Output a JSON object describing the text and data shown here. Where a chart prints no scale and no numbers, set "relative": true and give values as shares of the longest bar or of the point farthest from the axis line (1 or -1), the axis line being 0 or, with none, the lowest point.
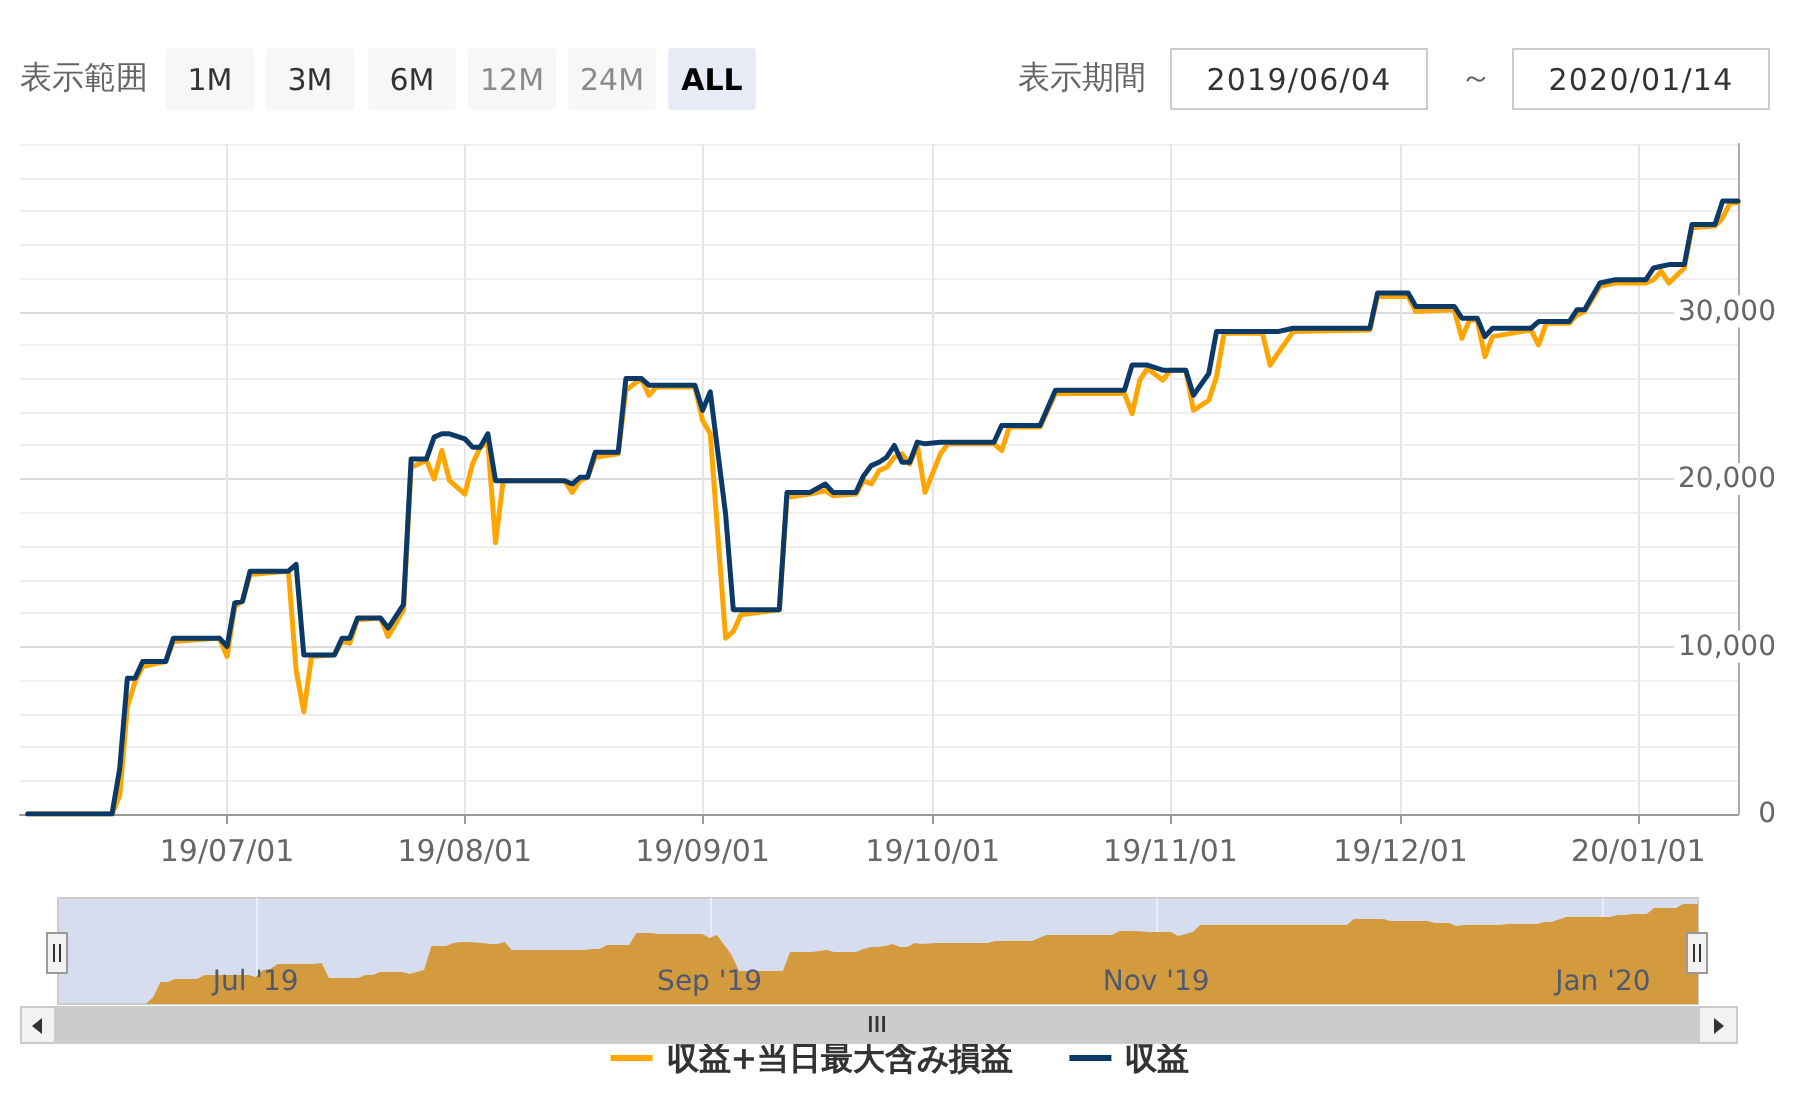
{
  "chart_data": [
    {
      "type": "line",
      "annotations": [
        "表示範囲",
        "1M",
        "3M",
        "6M",
        "12M",
        "24M",
        "ALL",
        "表示期間",
        "2019/06/04",
        "～",
        "2020/01/14"
      ],
      "x": [
        "2019-06-05",
        "2019-06-16",
        "2019-06-17",
        "2019-06-18",
        "2019-06-19",
        "2019-06-20",
        "2019-06-23",
        "2019-06-24",
        "2019-06-30",
        "2019-07-01",
        "2019-07-02",
        "2019-07-03",
        "2019-07-04",
        "2019-07-09",
        "2019-07-10",
        "2019-07-11",
        "2019-07-12",
        "2019-07-15",
        "2019-07-16",
        "2019-07-17",
        "2019-07-18",
        "2019-07-21",
        "2019-07-22",
        "2019-07-24",
        "2019-07-25",
        "2019-07-27",
        "2019-07-28",
        "2019-07-29",
        "2019-07-30",
        "2019-08-01",
        "2019-08-02",
        "2019-08-03",
        "2019-08-04",
        "2019-08-05",
        "2019-08-06",
        "2019-08-14",
        "2019-08-15",
        "2019-08-16",
        "2019-08-17",
        "2019-08-18",
        "2019-08-21",
        "2019-08-22",
        "2019-08-24",
        "2019-08-25",
        "2019-08-26",
        "2019-08-31",
        "2019-09-01",
        "2019-09-02",
        "2019-09-04",
        "2019-09-05",
        "2019-09-06",
        "2019-09-11",
        "2019-09-12",
        "2019-09-15",
        "2019-09-17",
        "2019-09-18",
        "2019-09-21",
        "2019-09-22",
        "2019-09-23",
        "2019-09-24",
        "2019-09-25",
        "2019-09-26",
        "2019-09-27",
        "2019-09-28",
        "2019-09-29",
        "2019-09-30",
        "2019-10-02",
        "2019-10-03",
        "2019-10-09",
        "2019-10-10",
        "2019-10-11",
        "2019-10-15",
        "2019-10-17",
        "2019-10-26",
        "2019-10-27",
        "2019-10-28",
        "2019-10-29",
        "2019-10-31",
        "2019-11-01",
        "2019-11-03",
        "2019-11-04",
        "2019-11-06",
        "2019-11-07",
        "2019-11-08",
        "2019-11-13",
        "2019-11-14",
        "2019-11-15",
        "2019-11-17",
        "2019-11-27",
        "2019-11-28",
        "2019-12-02",
        "2019-12-03",
        "2019-12-08",
        "2019-12-09",
        "2019-12-10",
        "2019-12-11",
        "2019-12-12",
        "2019-12-13",
        "2019-12-18",
        "2019-12-19",
        "2019-12-20",
        "2019-12-23",
        "2019-12-24",
        "2019-12-25",
        "2019-12-27",
        "2019-12-29",
        "2020-01-02",
        "2020-01-03",
        "2020-01-04",
        "2020-01-05",
        "2020-01-07",
        "2020-01-08",
        "2020-01-11",
        "2020-01-12",
        "2020-01-13",
        "2020-01-14"
      ],
      "series": [
        {
          "name": "収益+当日最大含み損益",
          "color": "#ffa500",
          "values": [
            0,
            0,
            1100,
            6400,
            7900,
            8800,
            9100,
            10300,
            10500,
            9400,
            12400,
            12700,
            14300,
            14500,
            8600,
            6100,
            9400,
            9500,
            10300,
            10200,
            11600,
            11700,
            10600,
            12200,
            20700,
            21100,
            20000,
            21700,
            19900,
            19100,
            20900,
            21900,
            22200,
            16200,
            19900,
            19900,
            19200,
            19900,
            20100,
            21300,
            21500,
            25300,
            26000,
            25000,
            25500,
            25500,
            23500,
            22700,
            10500,
            10900,
            11900,
            12200,
            18900,
            19100,
            19300,
            19000,
            19100,
            19900,
            19700,
            20500,
            20700,
            21300,
            21500,
            20900,
            22000,
            19200,
            21500,
            22100,
            22100,
            21700,
            23100,
            23100,
            25100,
            25100,
            23900,
            25900,
            26600,
            25900,
            26500,
            26500,
            24100,
            24700,
            26100,
            28700,
            28700,
            26800,
            27500,
            28800,
            28900,
            30900,
            30900,
            30000,
            30100,
            28400,
            29500,
            29500,
            27300,
            28500,
            28900,
            28000,
            29300,
            29300,
            29800,
            30000,
            31500,
            31700,
            31700,
            31900,
            32400,
            31700,
            32600,
            35000,
            35100,
            35600,
            36500,
            36500
          ]
        },
        {
          "name": "収益",
          "color": "#0b3a68",
          "values": [
            0,
            0,
            2700,
            8100,
            8100,
            9100,
            9100,
            10500,
            10500,
            10000,
            12600,
            12700,
            14500,
            14500,
            14900,
            9500,
            9500,
            9500,
            10500,
            10500,
            11700,
            11700,
            11100,
            12500,
            21200,
            21200,
            22500,
            22700,
            22700,
            22400,
            21900,
            21900,
            22700,
            19900,
            19900,
            19900,
            19700,
            20100,
            20100,
            21600,
            21600,
            26000,
            26000,
            25600,
            25600,
            25600,
            24100,
            25200,
            17900,
            12200,
            12200,
            12200,
            19200,
            19200,
            19700,
            19200,
            19200,
            20200,
            20800,
            21000,
            21300,
            22000,
            21000,
            21000,
            22200,
            22100,
            22200,
            22200,
            22200,
            23200,
            23200,
            23200,
            25300,
            25300,
            26800,
            26800,
            26800,
            26500,
            26500,
            26500,
            25000,
            26300,
            28800,
            28800,
            28800,
            28800,
            28800,
            29000,
            29000,
            31100,
            31100,
            30300,
            30300,
            29600,
            29600,
            29600,
            28500,
            29000,
            29000,
            29400,
            29400,
            29400,
            30100,
            30100,
            31700,
            31900,
            31900,
            32600,
            32700,
            32800,
            32800,
            35200,
            35200,
            36600,
            36600,
            36600
          ]
        }
      ],
      "xlim": [
        "2019-06-04",
        "2020-01-14"
      ],
      "xticks": [
        {
          "value": "2019-07-01",
          "label": "19/07/01"
        },
        {
          "value": "2019-08-01",
          "label": "19/08/01"
        },
        {
          "value": "2019-09-01",
          "label": "19/09/01"
        },
        {
          "value": "2019-10-01",
          "label": "19/10/01"
        },
        {
          "value": "2019-11-01",
          "label": "19/11/01"
        },
        {
          "value": "2019-12-01",
          "label": "19/12/01"
        },
        {
          "value": "2020-01-01",
          "label": "20/01/01"
        }
      ],
      "ylim": [
        0,
        40000
      ],
      "yticks": [
        0,
        {
          "value": 2000,
          "label": null
        },
        {
          "value": 4000,
          "label": null
        },
        {
          "value": 6000,
          "label": null
        },
        {
          "value": 8000,
          "label": null
        },
        {
          "value": 10000,
          "label": "10,000"
        },
        {
          "value": 12000,
          "label": null
        },
        {
          "value": 14000,
          "label": null
        },
        {
          "value": 16000,
          "label": null
        },
        {
          "value": 18000,
          "label": null
        },
        {
          "value": 20000,
          "label": "20,000"
        },
        {
          "value": 22000,
          "label": null
        },
        {
          "value": 24000,
          "label": null
        },
        {
          "value": 26000,
          "label": null
        },
        {
          "value": 28000,
          "label": null
        },
        {
          "value": 30000,
          "label": "30,000"
        },
        {
          "value": 32000,
          "label": null
        },
        {
          "value": 34000,
          "label": null
        },
        {
          "value": 36000,
          "label": null
        },
        {
          "value": 38000,
          "label": null
        },
        {
          "value": 40000,
          "label": null
        }
      ],
      "grid": true,
      "legend": "bottom"
    },
    {
      "type": "area",
      "relative": true,
      "color": "#d39b3d",
      "x": [
        "2019-06-05",
        "2019-06-16",
        "2019-06-17",
        "2019-06-18",
        "2019-06-19",
        "2019-06-20",
        "2019-06-23",
        "2019-06-24",
        "2019-06-30",
        "2019-07-01",
        "2019-07-02",
        "2019-07-03",
        "2019-07-04",
        "2019-07-09",
        "2019-07-10",
        "2019-07-11",
        "2019-07-12",
        "2019-07-15",
        "2019-07-16",
        "2019-07-17",
        "2019-07-18",
        "2019-07-21",
        "2019-07-22",
        "2019-07-24",
        "2019-07-25",
        "2019-07-27",
        "2019-07-28",
        "2019-07-29",
        "2019-07-30",
        "2019-08-01",
        "2019-08-02",
        "2019-08-03",
        "2019-08-04",
        "2019-08-05",
        "2019-08-06",
        "2019-08-14",
        "2019-08-15",
        "2019-08-16",
        "2019-08-17",
        "2019-08-18",
        "2019-08-21",
        "2019-08-22",
        "2019-08-24",
        "2019-08-25",
        "2019-08-26",
        "2019-08-31",
        "2019-09-01",
        "2019-09-02",
        "2019-09-04",
        "2019-09-05",
        "2019-09-06",
        "2019-09-11",
        "2019-09-12",
        "2019-09-15",
        "2019-09-17",
        "2019-09-18",
        "2019-09-21",
        "2019-09-22",
        "2019-09-23",
        "2019-09-24",
        "2019-09-25",
        "2019-09-26",
        "2019-09-27",
        "2019-09-28",
        "2019-09-29",
        "2019-09-30",
        "2019-10-02",
        "2019-10-03",
        "2019-10-09",
        "2019-10-10",
        "2019-10-11",
        "2019-10-15",
        "2019-10-17",
        "2019-10-26",
        "2019-10-27",
        "2019-10-28",
        "2019-10-29",
        "2019-10-31",
        "2019-11-01",
        "2019-11-03",
        "2019-11-04",
        "2019-11-06",
        "2019-11-07",
        "2019-11-08",
        "2019-11-13",
        "2019-11-14",
        "2019-11-15",
        "2019-11-17",
        "2019-11-27",
        "2019-11-28",
        "2019-12-02",
        "2019-12-03",
        "2019-12-08",
        "2019-12-09",
        "2019-12-10",
        "2019-12-11",
        "2019-12-12",
        "2019-12-13",
        "2019-12-18",
        "2019-12-19",
        "2019-12-20",
        "2019-12-23",
        "2019-12-24",
        "2019-12-25",
        "2019-12-27",
        "2019-12-29",
        "2020-01-02",
        "2020-01-03",
        "2020-01-04",
        "2020-01-05",
        "2020-01-07",
        "2020-01-08",
        "2020-01-11",
        "2020-01-12",
        "2020-01-13",
        "2020-01-14"
      ],
      "values": [
        0,
        0,
        0.07,
        0.22,
        0.22,
        0.25,
        0.25,
        0.29,
        0.29,
        0.27,
        0.34,
        0.35,
        0.4,
        0.4,
        0.41,
        0.26,
        0.26,
        0.26,
        0.29,
        0.29,
        0.32,
        0.32,
        0.3,
        0.34,
        0.58,
        0.58,
        0.61,
        0.62,
        0.62,
        0.61,
        0.6,
        0.6,
        0.62,
        0.54,
        0.54,
        0.54,
        0.54,
        0.55,
        0.55,
        0.59,
        0.59,
        0.71,
        0.71,
        0.7,
        0.7,
        0.7,
        0.66,
        0.69,
        0.49,
        0.33,
        0.33,
        0.33,
        0.52,
        0.52,
        0.54,
        0.52,
        0.52,
        0.55,
        0.57,
        0.57,
        0.58,
        0.6,
        0.57,
        0.57,
        0.61,
        0.6,
        0.61,
        0.61,
        0.61,
        0.63,
        0.63,
        0.63,
        0.69,
        0.69,
        0.73,
        0.73,
        0.73,
        0.72,
        0.72,
        0.72,
        0.68,
        0.72,
        0.79,
        0.79,
        0.79,
        0.79,
        0.79,
        0.79,
        0.79,
        0.85,
        0.85,
        0.83,
        0.83,
        0.81,
        0.81,
        0.81,
        0.78,
        0.79,
        0.79,
        0.8,
        0.8,
        0.8,
        0.82,
        0.82,
        0.87,
        0.87,
        0.87,
        0.89,
        0.89,
        0.9,
        0.9,
        0.96,
        0.96,
        1,
        1,
        1
      ],
      "xlim": [
        "2019-06-04",
        "2020-01-14"
      ],
      "xticks": [
        {
          "value": "2019-07-01",
          "label": "Jul '19"
        },
        {
          "value": "2019-09-01",
          "label": "Sep '19"
        },
        {
          "value": "2019-11-01",
          "label": "Nov '19"
        },
        {
          "value": "2020-01-01",
          "label": "Jan '20"
        }
      ],
      "grid": "x",
      "tick_labels": "x"
    }
  ]
}
